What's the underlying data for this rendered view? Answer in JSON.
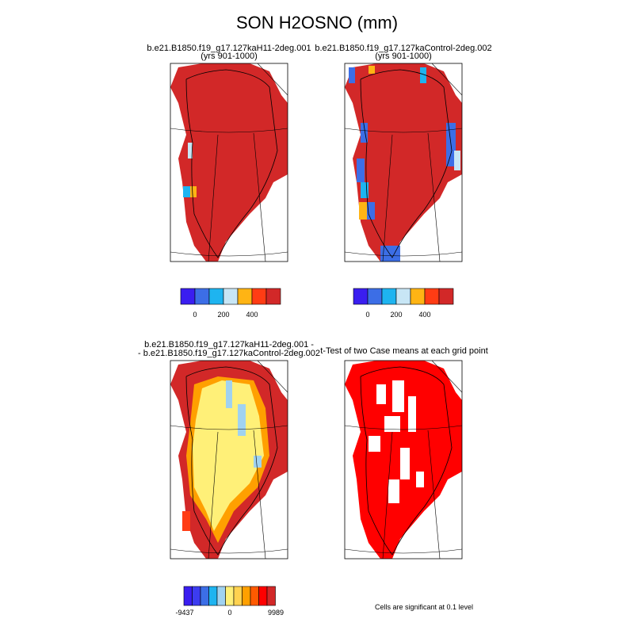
{
  "title": "SON H2OSNO (mm)",
  "panels": [
    {
      "title": [
        "b.e21.B1850.f19_g17.127kaH11-2deg.001",
        "(yrs 901-1000)"
      ],
      "colorbar_labels": [
        0,
        200,
        400
      ]
    },
    {
      "title": [
        "b.e21.B1850.f19_g17.127kaControl-2deg.002",
        "(yrs 901-1000)"
      ],
      "colorbar_labels": [
        0,
        200,
        400
      ]
    },
    {
      "title": [
        "b.e21.B1850.f19_g17.127kaH11-2deg.001 -",
        "- b.e21.B1850.f19_g17.127kaControl-2deg.002"
      ],
      "colorbar_labels": [
        -9437,
        0,
        9989
      ]
    },
    {
      "title": [
        "t-Test of two Case means at each grid point"
      ],
      "note": "Cells are significant at 0.1 level"
    }
  ]
}
